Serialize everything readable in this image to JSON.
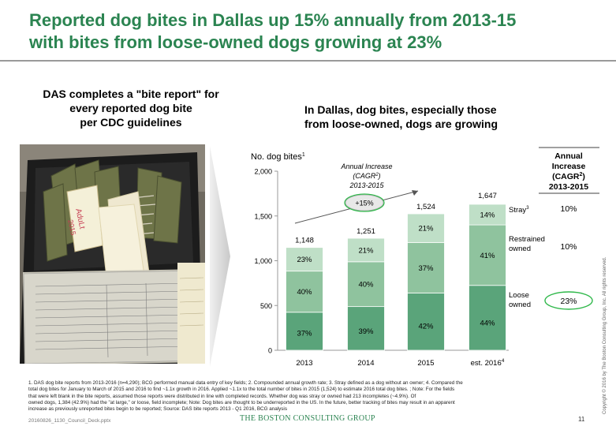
{
  "slide": {
    "title_line1": "Reported dog bites in Dallas up 15% annually from 2013-15",
    "title_line2": "with bites from loose-owned dogs growing at 23%",
    "left_heading_line1": "DAS completes a \"bite report\" for",
    "left_heading_line2": "every reported dog bite",
    "left_heading_line3": "per CDC guidelines",
    "right_heading_line1": "In Dallas, dog bites, especially those",
    "right_heading_line2": "from loose-owned, dogs are growing",
    "photo_note_line1": "AduLt",
    "photo_note_line2": "2015",
    "footnote_line1": "1. DAS dog bite reports from 2013-2016 (n=4,290); BCG performed manual data entry of key fields; 2. Compounded annual growth rate; 3. Stray defined as a dog without an owner; 4. Compared the",
    "footnote_line2": "total dog bites for January to March of 2015 and 2016 to find ~1.1x growth in 2016. Applied ~1.1x to the total number of bites in 2015 (1,524) to estimate 2016 total dog bites. ; Note: For the fields",
    "footnote_line3": "that were left blank in the bite reports, assumed those reports were distributed in line with completed records. Whether dog was stray or owned had 213 incompletes (~4.9%). Of",
    "footnote_line4": "owned dogs, 1,384 (42.9%) had the \"at large,\" or loose, field incomplete; Note: Dog bites are thought to be underreported in the US. In the future, better tracking of bites may result in an apparent",
    "footnote_line5": "increase as previously unreported bites begin to be reported; Source: DAS bite reports 2013 - Q1 2016, BCG analysis",
    "filename": "20160826_1130_Council_Deck.pptx",
    "logo": "THE BOSTON CONSULTING GROUP",
    "page_number": "11",
    "copyright": "Copyright © 2016 by The Boston Consulting Group, Inc. All rights reserved."
  },
  "colors": {
    "title_green": "#2b8451",
    "loose": "#5aa47a",
    "restrained": "#8fc39e",
    "stray": "#bfdfc7",
    "circle": "#2fb84a"
  },
  "chart_data": {
    "type": "bar",
    "ylabel_main": "No. dog bites",
    "ylabel_sup": "1",
    "ylim": [
      0,
      2000
    ],
    "yticks": [
      "0",
      "500",
      "1,000",
      "1,500",
      "2,000"
    ],
    "categories": [
      "2013",
      "2014",
      "2015",
      "est. 2016"
    ],
    "category_sup": [
      "",
      "",
      "",
      "4"
    ],
    "totals": [
      1148,
      1251,
      1524,
      1647
    ],
    "total_labels": [
      "1,148",
      "1,251",
      "1,524",
      "1,647"
    ],
    "series": [
      {
        "name": "Loose owned",
        "name_line1": "Loose",
        "name_line2": "owned",
        "shares": [
          37,
          39,
          42,
          44
        ],
        "labels": [
          "37%",
          "39%",
          "42%",
          "44%"
        ],
        "cagr": "23%"
      },
      {
        "name": "Restrained owned",
        "name_line1": "Restrained",
        "name_line2": "owned",
        "shares": [
          40,
          40,
          37,
          41
        ],
        "labels": [
          "40%",
          "40%",
          "37%",
          "41%"
        ],
        "cagr": "10%"
      },
      {
        "name": "Stray",
        "name_line1": "Stray",
        "name_line2": "",
        "name_sup": "3",
        "shares": [
          23,
          21,
          21,
          14
        ],
        "labels": [
          "23%",
          "21%",
          "21%",
          "14%"
        ],
        "cagr": "10%"
      }
    ],
    "annotation_line1": "Annual Increase",
    "annotation_line2": "(CAGR",
    "annotation_line2_sup": "2",
    "annotation_line2_end": ")",
    "annotation_line3": "2013-2015",
    "annotation_value": "+15%",
    "cagr_header_line1": "Annual",
    "cagr_header_line2": "Increase",
    "cagr_header_line3": "(CAGR",
    "cagr_header_line3_sup": "2",
    "cagr_header_line3_end": ")",
    "cagr_header_line4": "2013-2015"
  }
}
